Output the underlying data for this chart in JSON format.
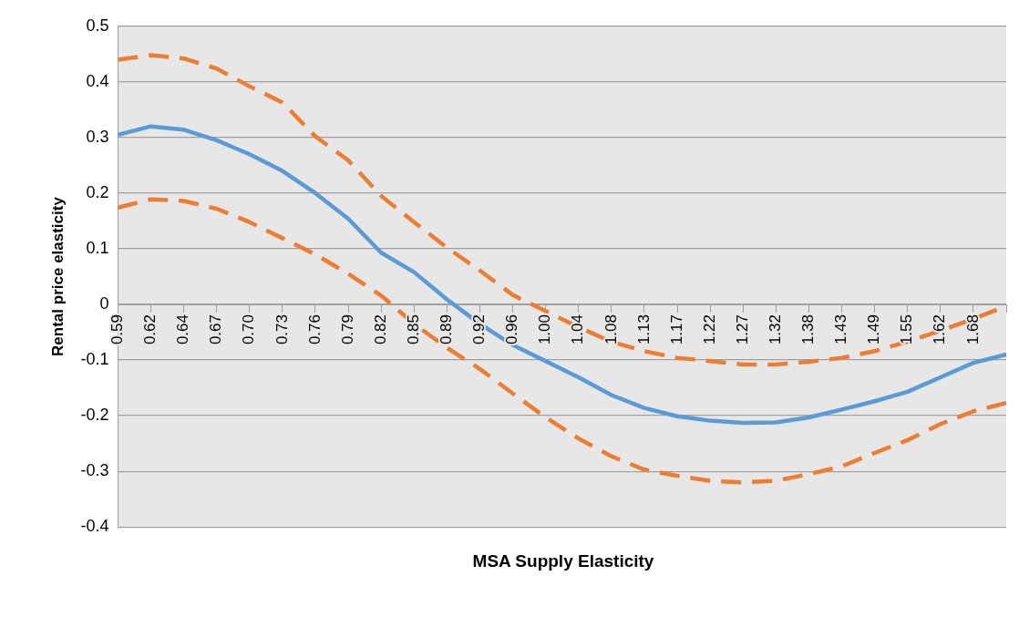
{
  "chart_data": {
    "type": "line",
    "xlabel": "MSA Supply Elasticity",
    "ylabel": "Rental price elasticity",
    "categories": [
      "0.59",
      "0.62",
      "0.64",
      "0.67",
      "0.70",
      "0.73",
      "0.76",
      "0.79",
      "0.82",
      "0.85",
      "0.89",
      "0.92",
      "0.96",
      "1.00",
      "1.04",
      "1.08",
      "1.13",
      "1.17",
      "1.22",
      "1.27",
      "1.32",
      "1.38",
      "1.43",
      "1.49",
      "1.55",
      "1.62",
      "1.68",
      null
    ],
    "series": [
      {
        "color": "#ed7d31",
        "line_style": "dashed",
        "values": [
          0.44,
          0.448,
          0.442,
          0.424,
          0.392,
          0.363,
          0.302,
          0.259,
          0.195,
          0.148,
          0.102,
          0.061,
          0.017,
          -0.012,
          -0.041,
          -0.067,
          -0.084,
          -0.096,
          -0.102,
          -0.108,
          -0.108,
          -0.103,
          -0.096,
          -0.084,
          -0.067,
          -0.047,
          -0.026,
          -0.003
        ]
      },
      {
        "color": "#ed7d31",
        "line_style": "dashed",
        "values": [
          0.174,
          0.189,
          0.186,
          0.172,
          0.148,
          0.119,
          0.09,
          0.055,
          0.016,
          -0.035,
          -0.078,
          -0.116,
          -0.16,
          -0.203,
          -0.241,
          -0.273,
          -0.297,
          -0.308,
          -0.317,
          -0.32,
          -0.317,
          -0.305,
          -0.291,
          -0.267,
          -0.244,
          -0.215,
          -0.192,
          -0.177
        ]
      },
      {
        "color": "#5b9bd5",
        "line_style": "solid",
        "values": [
          0.305,
          0.32,
          0.314,
          0.295,
          0.27,
          0.24,
          0.2,
          0.154,
          0.093,
          0.058,
          0.009,
          -0.035,
          -0.073,
          -0.102,
          -0.131,
          -0.163,
          -0.186,
          -0.201,
          -0.209,
          -0.213,
          -0.212,
          -0.203,
          -0.189,
          -0.174,
          -0.157,
          -0.131,
          -0.105,
          -0.09
        ]
      }
    ],
    "ylim": [
      -0.4,
      0.5
    ],
    "yticks": [
      -0.4,
      -0.3,
      -0.2,
      -0.1,
      0,
      0.1,
      0.2,
      0.3,
      0.4,
      0.5
    ],
    "grid": "y",
    "marker": "none"
  }
}
